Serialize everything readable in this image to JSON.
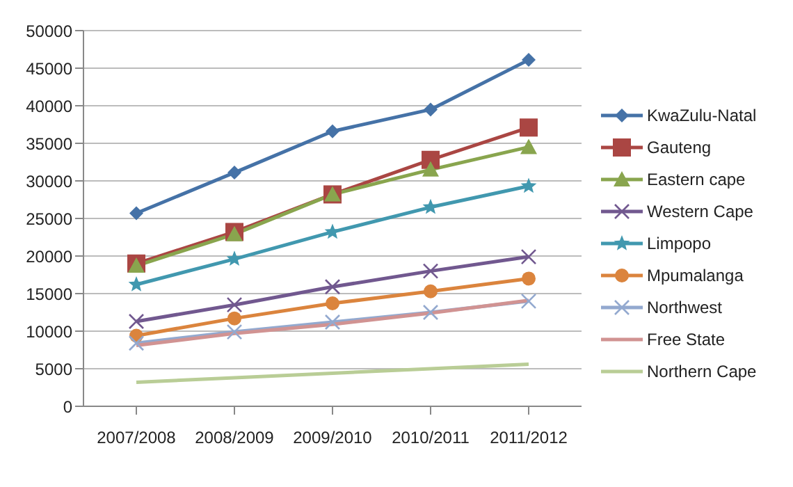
{
  "chart_data": {
    "type": "line",
    "categories": [
      "2007/2008",
      "2008/2009",
      "2009/2010",
      "2010/2011",
      "2011/2012"
    ],
    "series": [
      {
        "name": "KwaZulu-Natal",
        "color": "#4572a7",
        "marker": "diamond",
        "values": [
          25700,
          31100,
          36600,
          39500,
          46100
        ]
      },
      {
        "name": "Gauteng",
        "color": "#aa4643",
        "marker": "square",
        "values": [
          19000,
          23200,
          28200,
          32800,
          37100
        ]
      },
      {
        "name": "Eastern cape",
        "color": "#89a54e",
        "marker": "triangle",
        "values": [
          18700,
          22900,
          28200,
          31500,
          34500
        ]
      },
      {
        "name": "Western Cape",
        "color": "#71588f",
        "marker": "cross",
        "values": [
          11300,
          13500,
          15900,
          18000,
          19900
        ]
      },
      {
        "name": "Limpopo",
        "color": "#4198af",
        "marker": "star",
        "values": [
          16200,
          19600,
          23200,
          26500,
          29300
        ]
      },
      {
        "name": "Mpumalanga",
        "color": "#db843d",
        "marker": "circle",
        "values": [
          9400,
          11700,
          13700,
          15300,
          17000
        ]
      },
      {
        "name": "Northwest",
        "color": "#93a9cf",
        "marker": "cross",
        "values": [
          8400,
          9900,
          11200,
          12500,
          14000
        ]
      },
      {
        "name": "Free State",
        "color": "#d19392",
        "marker": "none",
        "values": [
          8100,
          9700,
          10900,
          12400,
          14100
        ]
      },
      {
        "name": "Northern Cape",
        "color": "#b9cd96",
        "marker": "none",
        "values": [
          3200,
          3800,
          4400,
          5000,
          5600
        ]
      }
    ],
    "ylim": [
      0,
      50000
    ],
    "yticks": [
      0,
      5000,
      10000,
      15000,
      20000,
      25000,
      30000,
      35000,
      40000,
      45000,
      50000
    ],
    "grid": "y",
    "legend": "right"
  }
}
